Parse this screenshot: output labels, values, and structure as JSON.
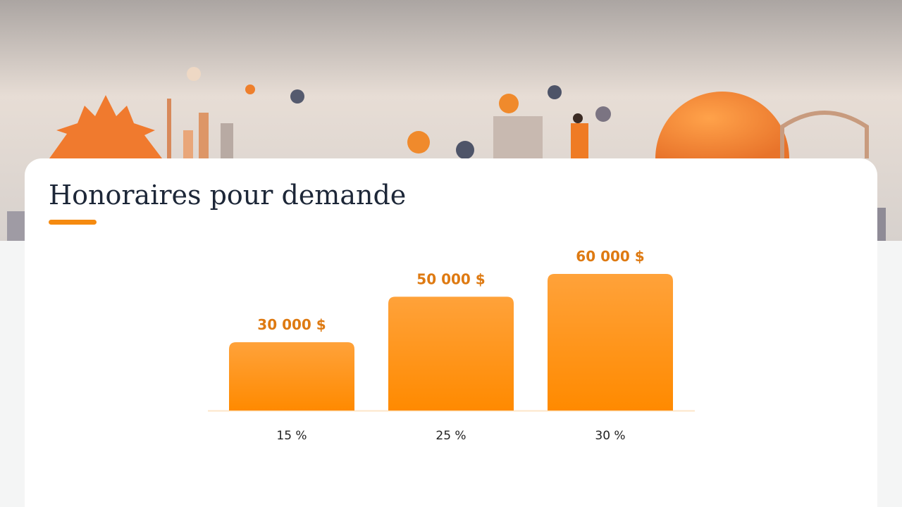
{
  "chart_data": {
    "type": "bar",
    "title": "Honoraires pour demande",
    "categories": [
      "15 %",
      "25 %",
      "30 %"
    ],
    "values": [
      30000,
      50000,
      60000
    ],
    "value_labels": [
      "30 000 $",
      "50 000 $",
      "60 000 $"
    ],
    "color": "#ff9210"
  }
}
